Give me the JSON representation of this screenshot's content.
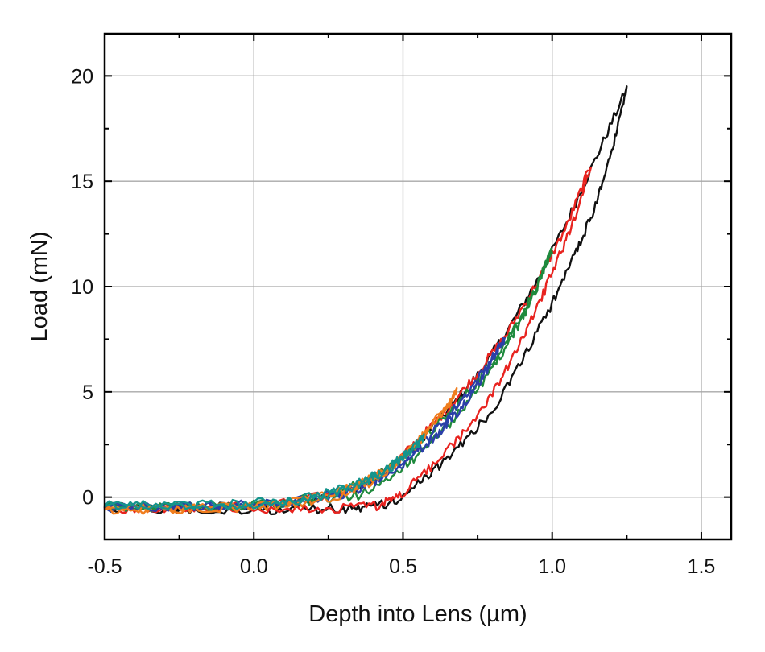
{
  "chart_data": {
    "type": "line",
    "title": "",
    "xlabel": "Depth into Lens (µm)",
    "ylabel": "Load (mN)",
    "xlim": [
      -0.5,
      1.6
    ],
    "ylim": [
      -2,
      22
    ],
    "x_ticks": [
      -0.5,
      0.0,
      0.5,
      1.0,
      1.5
    ],
    "x_tick_labels": [
      "-0.5",
      "0.0",
      "0.5",
      "1.0",
      "1.5"
    ],
    "y_ticks": [
      0,
      5,
      10,
      15,
      20
    ],
    "y_tick_labels": [
      "0",
      "5",
      "10",
      "15",
      "20"
    ],
    "grid": true,
    "legend": "none",
    "series": [
      {
        "color": "#111111",
        "loading": [
          [
            -0.5,
            -0.5
          ],
          [
            -0.3,
            -0.5
          ],
          [
            -0.1,
            -0.45
          ],
          [
            0.1,
            -0.35
          ],
          [
            0.3,
            0.2
          ],
          [
            0.45,
            1.2
          ],
          [
            0.55,
            2.6
          ],
          [
            0.65,
            4.1
          ],
          [
            0.75,
            5.8
          ],
          [
            0.85,
            7.9
          ],
          [
            0.95,
            10.3
          ],
          [
            1.05,
            13.1
          ],
          [
            1.15,
            16.2
          ],
          [
            1.25,
            19.4
          ]
        ],
        "unloading": [
          [
            1.25,
            19.4
          ],
          [
            1.2,
            16.5
          ],
          [
            1.15,
            14.0
          ],
          [
            1.08,
            11.6
          ],
          [
            1.0,
            9.2
          ],
          [
            0.9,
            6.5
          ],
          [
            0.8,
            4.1
          ],
          [
            0.7,
            2.6
          ],
          [
            0.6,
            1.2
          ],
          [
            0.5,
            0.0
          ],
          [
            0.4,
            -0.5
          ],
          [
            0.3,
            -0.55
          ],
          [
            0.1,
            -0.6
          ],
          [
            -0.1,
            -0.6
          ],
          [
            -0.3,
            -0.55
          ],
          [
            -0.5,
            -0.5
          ]
        ]
      },
      {
        "color": "#e8231f",
        "loading": [
          [
            -0.5,
            -0.55
          ],
          [
            -0.3,
            -0.5
          ],
          [
            -0.1,
            -0.45
          ],
          [
            0.1,
            -0.3
          ],
          [
            0.3,
            0.25
          ],
          [
            0.45,
            1.3
          ],
          [
            0.55,
            2.7
          ],
          [
            0.65,
            4.2
          ],
          [
            0.75,
            5.9
          ],
          [
            0.85,
            7.8
          ],
          [
            0.95,
            10.2
          ],
          [
            1.05,
            12.9
          ],
          [
            1.13,
            15.8
          ]
        ],
        "unloading": [
          [
            1.13,
            15.8
          ],
          [
            1.08,
            13.4
          ],
          [
            1.02,
            11.3
          ],
          [
            0.95,
            9.0
          ],
          [
            0.88,
            6.9
          ],
          [
            0.8,
            4.9
          ],
          [
            0.7,
            3.0
          ],
          [
            0.6,
            1.5
          ],
          [
            0.5,
            0.2
          ],
          [
            0.42,
            -0.4
          ],
          [
            0.3,
            -0.5
          ],
          [
            0.1,
            -0.55
          ],
          [
            -0.1,
            -0.55
          ],
          [
            -0.3,
            -0.5
          ],
          [
            -0.5,
            -0.5
          ]
        ]
      },
      {
        "color": "#1f8a3d",
        "loading": [
          [
            -0.5,
            -0.45
          ],
          [
            -0.3,
            -0.45
          ],
          [
            -0.1,
            -0.4
          ],
          [
            0.1,
            -0.25
          ],
          [
            0.3,
            0.3
          ],
          [
            0.45,
            1.3
          ],
          [
            0.55,
            2.5
          ],
          [
            0.65,
            3.9
          ],
          [
            0.75,
            5.5
          ],
          [
            0.85,
            7.5
          ],
          [
            0.95,
            10.0
          ],
          [
            1.0,
            11.8
          ]
        ],
        "unloading": [
          [
            1.0,
            11.8
          ],
          [
            0.95,
            10.0
          ],
          [
            0.9,
            8.5
          ],
          [
            0.83,
            6.8
          ],
          [
            0.75,
            5.1
          ],
          [
            0.65,
            3.4
          ],
          [
            0.55,
            2.0
          ],
          [
            0.45,
            0.8
          ],
          [
            0.35,
            0.1
          ],
          [
            0.2,
            -0.2
          ],
          [
            0.0,
            -0.35
          ],
          [
            -0.2,
            -0.4
          ],
          [
            -0.5,
            -0.45
          ]
        ]
      },
      {
        "color": "#2b3fa8",
        "loading": [
          [
            -0.5,
            -0.5
          ],
          [
            -0.3,
            -0.45
          ],
          [
            -0.1,
            -0.4
          ],
          [
            0.1,
            -0.3
          ],
          [
            0.3,
            0.25
          ],
          [
            0.45,
            1.2
          ],
          [
            0.55,
            2.4
          ],
          [
            0.65,
            3.8
          ],
          [
            0.75,
            5.6
          ],
          [
            0.84,
            7.5
          ]
        ],
        "unloading": [
          [
            0.84,
            7.5
          ],
          [
            0.8,
            6.5
          ],
          [
            0.75,
            5.3
          ],
          [
            0.68,
            4.0
          ],
          [
            0.6,
            2.8
          ],
          [
            0.5,
            1.6
          ],
          [
            0.4,
            0.7
          ],
          [
            0.3,
            0.1
          ],
          [
            0.15,
            -0.25
          ],
          [
            0.0,
            -0.35
          ],
          [
            -0.2,
            -0.45
          ],
          [
            -0.5,
            -0.5
          ]
        ]
      },
      {
        "color": "#f07d1d",
        "loading": [
          [
            -0.5,
            -0.6
          ],
          [
            -0.3,
            -0.55
          ],
          [
            -0.1,
            -0.45
          ],
          [
            0.1,
            -0.3
          ],
          [
            0.3,
            0.3
          ],
          [
            0.45,
            1.3
          ],
          [
            0.55,
            2.6
          ],
          [
            0.63,
            4.0
          ],
          [
            0.68,
            5.0
          ]
        ],
        "unloading": [
          [
            0.68,
            5.0
          ],
          [
            0.62,
            3.8
          ],
          [
            0.55,
            2.6
          ],
          [
            0.48,
            1.6
          ],
          [
            0.4,
            0.8
          ],
          [
            0.3,
            0.1
          ],
          [
            0.15,
            -0.3
          ],
          [
            0.0,
            -0.45
          ],
          [
            -0.2,
            -0.55
          ],
          [
            -0.5,
            -0.6
          ]
        ]
      },
      {
        "color": "#14948c",
        "loading": [
          [
            -0.5,
            -0.4
          ],
          [
            -0.3,
            -0.4
          ],
          [
            -0.1,
            -0.35
          ],
          [
            0.1,
            -0.2
          ],
          [
            0.3,
            0.4
          ],
          [
            0.45,
            1.3
          ],
          [
            0.52,
            2.2
          ],
          [
            0.57,
            2.8
          ]
        ],
        "unloading": [
          [
            0.57,
            2.8
          ],
          [
            0.52,
            2.1
          ],
          [
            0.45,
            1.4
          ],
          [
            0.38,
            0.8
          ],
          [
            0.3,
            0.3
          ],
          [
            0.15,
            -0.15
          ],
          [
            0.0,
            -0.35
          ],
          [
            -0.2,
            -0.4
          ],
          [
            -0.5,
            -0.45
          ]
        ]
      }
    ]
  }
}
